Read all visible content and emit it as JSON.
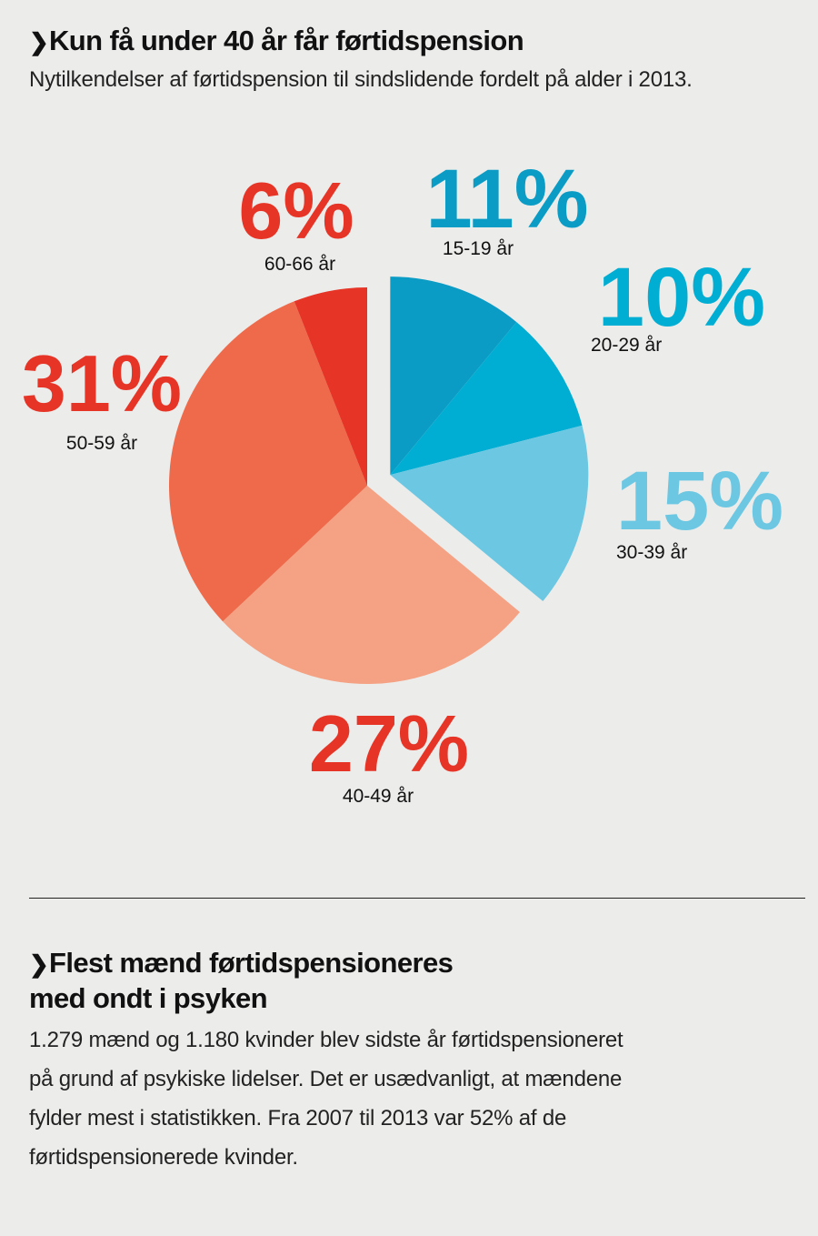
{
  "section1": {
    "title": "Kun få under 40 år får førtidspension",
    "subtitle": "Nytilkendelser af førtidspension til sindslidende fordelt på alder i 2013."
  },
  "chart_data": {
    "type": "pie",
    "categories": [
      "15-19 år",
      "20-29 år",
      "30-39 år",
      "40-49 år",
      "50-59 år",
      "60-66 år"
    ],
    "values": [
      11,
      10,
      15,
      27,
      31,
      6
    ],
    "value_labels": [
      "11%",
      "10%",
      "15%",
      "27%",
      "31%",
      "6%"
    ],
    "colors": [
      "#0a9cc5",
      "#00aed3",
      "#6cc7e2",
      "#f4a283",
      "#ee6a4b",
      "#e63426"
    ],
    "label_colors": [
      "#0a9cc5",
      "#00aed3",
      "#6cc7e2",
      "#e63426",
      "#e63426",
      "#e63426"
    ],
    "exploded": [
      "15-19 år",
      "20-29 år",
      "30-39 år"
    ]
  },
  "section2": {
    "title_line1": "Flest mænd førtidspensioneres",
    "title_line2": "med ondt i psyken",
    "body": "1.279 mænd og 1.180 kvinder blev sidste år førtidspensioneret på grund af psykiske lidelser. Det er usædvanligt, at mændene fylder mest i statistikken. Fra 2007 til 2013 var 52% af de førtidspensionerede kvinder."
  },
  "chevron": "❯"
}
